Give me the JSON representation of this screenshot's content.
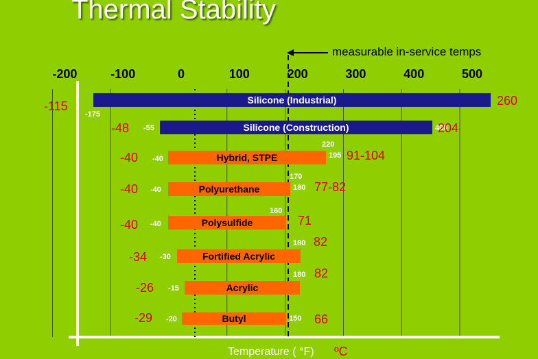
{
  "title": "Thermal Stability",
  "annotation": "measurable in-service temps",
  "chart_data": {
    "type": "bar",
    "orientation": "horizontal-range",
    "title": "Thermal Stability",
    "xlabel": "Temperature  ( °F)",
    "xlabel_secondary": "ºC",
    "x_ticks": [
      "-200",
      "-100",
      "0",
      "100",
      "200",
      "300",
      "400",
      "500"
    ],
    "x_tick_values": [
      -200,
      -100,
      0,
      100,
      200,
      300,
      400,
      500
    ],
    "xlim": [
      -220,
      560
    ],
    "reference_lines": [
      {
        "value": 20,
        "style": "dotted"
      },
      {
        "value": 185,
        "style": "dashed",
        "label": "measurable in-service temps"
      }
    ],
    "grid": true,
    "series": [
      {
        "name": "Silicone (Industrial)",
        "low_f": -175,
        "high_f": 500,
        "low_f_label": "-175",
        "high_f_label": "",
        "low_c": "-115",
        "high_c": "260",
        "color": "#1a1a8c"
      },
      {
        "name": "Silicone (Construction)",
        "low_f": -55,
        "high_f": 400,
        "low_f_label": "-55",
        "high_f_label": "400",
        "low_c": "-48",
        "high_c": "204",
        "color": "#1a1a8c"
      },
      {
        "name": "Hybrid, STPE",
        "low_f": -40,
        "high_f": 220,
        "low_f_label": "-40",
        "high_f_label": "195",
        "extra_label": "220",
        "low_c": "-40",
        "high_c": "91-104",
        "color": "#ff6600"
      },
      {
        "name": "Polyurethane",
        "low_f": -40,
        "high_f": 180,
        "low_f_label": "-40",
        "high_f_label": "180",
        "extra_label": "170",
        "low_c": "-40",
        "high_c": "77-82",
        "color": "#ff6600"
      },
      {
        "name": "Polysulfide",
        "low_f": -40,
        "high_f": 160,
        "low_f_label": "-40",
        "high_f_label": "",
        "extra_label": "160",
        "low_c": "-40",
        "high_c": "71",
        "color": "#ff6600"
      },
      {
        "name": "Fortified Acrylic",
        "low_f": -30,
        "high_f": 180,
        "low_f_label": "-30",
        "high_f_label": "180",
        "low_c": "-34",
        "high_c": "82",
        "color": "#ff6600"
      },
      {
        "name": "Acrylic",
        "low_f": -15,
        "high_f": 180,
        "low_f_label": "-15",
        "high_f_label": "180",
        "low_c": "-26",
        "high_c": "82",
        "color": "#ff6600"
      },
      {
        "name": "Butyl",
        "low_f": -20,
        "high_f": 150,
        "low_f_label": "-20",
        "high_f_label": "150",
        "low_c": "-29",
        "high_c": "66",
        "color": "#ff6600"
      }
    ]
  }
}
